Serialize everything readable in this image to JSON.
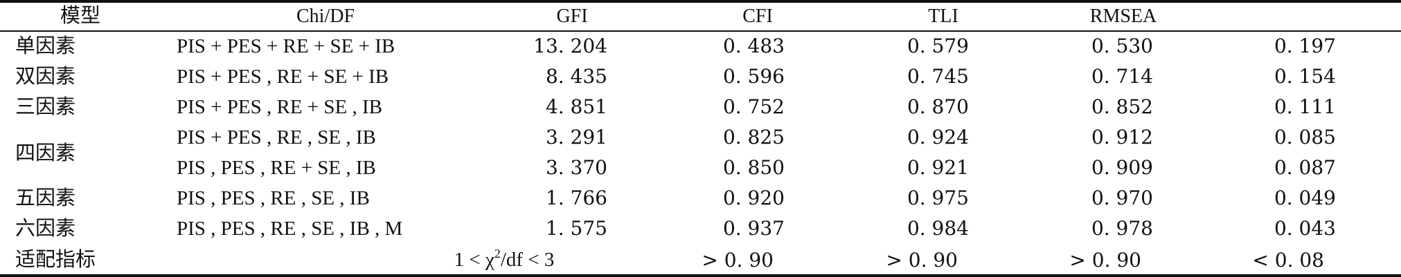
{
  "header": {
    "model": "模型",
    "chidf": "Chi/DF",
    "gfi": "GFI",
    "cfi": "CFI",
    "tli": "TLI",
    "rmsea": "RMSEA"
  },
  "rows": [
    {
      "label": "单因素",
      "model": "PIS + PES + RE + SE + IB",
      "v1": "13. 204",
      "v2": "0. 483",
      "v3": "0. 579",
      "v4": "0. 530",
      "v5": "0. 197"
    },
    {
      "label": "双因素",
      "model": "PIS + PES , RE + SE + IB",
      "v1": "8. 435",
      "v2": "0. 596",
      "v3": "0. 745",
      "v4": "0. 714",
      "v5": "0. 154"
    },
    {
      "label": "三因素",
      "model": "PIS + PES , RE + SE , IB",
      "v1": "4. 851",
      "v2": "0. 752",
      "v3": "0. 870",
      "v4": "0. 852",
      "v5": "0. 111"
    },
    {
      "label": "四因素",
      "model": "PIS + PES , RE , SE , IB",
      "v1": "3. 291",
      "v2": "0. 825",
      "v3": "0. 924",
      "v4": "0. 912",
      "v5": "0. 085"
    },
    {
      "label": "",
      "model": "PIS , PES , RE + SE , IB",
      "v1": "3. 370",
      "v2": "0. 850",
      "v3": "0. 921",
      "v4": "0. 909",
      "v5": "0. 087"
    },
    {
      "label": "五因素",
      "model": "PIS , PES , RE , SE , IB",
      "v1": "1. 766",
      "v2": "0. 920",
      "v3": "0. 975",
      "v4": "0. 970",
      "v5": "0. 049"
    },
    {
      "label": "六因素",
      "model": "PIS , PES , RE , SE , IB , M",
      "v1": "1. 575",
      "v2": "0. 937",
      "v3": "0. 984",
      "v4": "0. 978",
      "v5": "0. 043"
    }
  ],
  "fit": {
    "label": "适配指标",
    "chi_pre": "1 < χ",
    "chi_sup": "2",
    "chi_post": "/df < 3",
    "cfi": "> 0. 90",
    "tli": "> 0. 90",
    "rmsea": "> 0. 90",
    "last": "< 0. 08"
  }
}
